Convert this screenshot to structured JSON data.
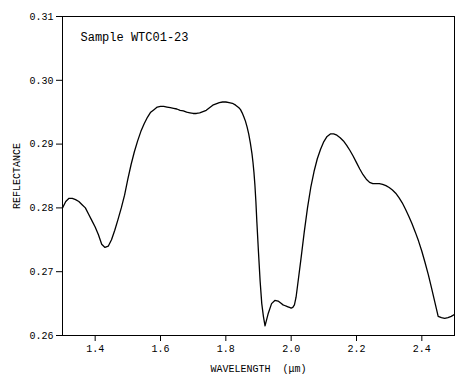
{
  "chart_data": {
    "type": "line",
    "title": "Sample WTC01-23",
    "xlabel": "WAVELENGTH  (μm)",
    "ylabel": "REFLECTANCE",
    "color": "#000000",
    "xlim": [
      1.3,
      2.5
    ],
    "ylim": [
      0.26,
      0.31
    ],
    "xticks": [
      1.4,
      1.6,
      1.8,
      {
        "value": 2.0,
        "label": "2.0"
      },
      2.2,
      2.4
    ],
    "yticks": [
      0.26,
      0.27,
      0.28,
      0.29,
      {
        "value": 0.3,
        "label": "0.30"
      },
      0.31
    ],
    "x": [
      1.3,
      1.31,
      1.32,
      1.33,
      1.34,
      1.35,
      1.36,
      1.37,
      1.38,
      1.39,
      1.4,
      1.41,
      1.42,
      1.43,
      1.44,
      1.45,
      1.46,
      1.47,
      1.48,
      1.49,
      1.5,
      1.51,
      1.52,
      1.53,
      1.54,
      1.55,
      1.56,
      1.57,
      1.58,
      1.59,
      1.6,
      1.61,
      1.62,
      1.63,
      1.64,
      1.65,
      1.66,
      1.67,
      1.68,
      1.69,
      1.7,
      1.71,
      1.72,
      1.73,
      1.74,
      1.75,
      1.76,
      1.77,
      1.78,
      1.79,
      1.8,
      1.81,
      1.82,
      1.83,
      1.84,
      1.845,
      1.85,
      1.855,
      1.86,
      1.865,
      1.87,
      1.875,
      1.88,
      1.883,
      1.886,
      1.889,
      1.892,
      1.895,
      1.9,
      1.905,
      1.91,
      1.915,
      1.92,
      1.93,
      1.94,
      1.95,
      1.96,
      1.965,
      1.97,
      1.975,
      1.98,
      1.985,
      1.99,
      1.995,
      2.0,
      2.005,
      2.01,
      2.015,
      2.02,
      2.03,
      2.04,
      2.05,
      2.06,
      2.07,
      2.08,
      2.09,
      2.1,
      2.11,
      2.12,
      2.13,
      2.14,
      2.15,
      2.16,
      2.17,
      2.18,
      2.19,
      2.2,
      2.21,
      2.22,
      2.23,
      2.24,
      2.25,
      2.26,
      2.27,
      2.28,
      2.29,
      2.3,
      2.31,
      2.32,
      2.33,
      2.34,
      2.35,
      2.36,
      2.37,
      2.38,
      2.39,
      2.4,
      2.41,
      2.42,
      2.43,
      2.44,
      2.45,
      2.46,
      2.47,
      2.48,
      2.49,
      2.5
    ],
    "values": [
      0.28,
      0.281,
      0.2815,
      0.2815,
      0.2813,
      0.281,
      0.2805,
      0.28,
      0.279,
      0.278,
      0.277,
      0.2758,
      0.2743,
      0.2738,
      0.274,
      0.275,
      0.2765,
      0.2782,
      0.28,
      0.282,
      0.2845,
      0.2868,
      0.2888,
      0.2905,
      0.292,
      0.2932,
      0.2942,
      0.295,
      0.2954,
      0.2958,
      0.2959,
      0.2959,
      0.2958,
      0.2957,
      0.2956,
      0.2955,
      0.2953,
      0.2952,
      0.295,
      0.2949,
      0.2948,
      0.2948,
      0.2949,
      0.2951,
      0.2953,
      0.2957,
      0.2961,
      0.2963,
      0.2965,
      0.2966,
      0.2966,
      0.2965,
      0.2964,
      0.2961,
      0.2957,
      0.2954,
      0.2949,
      0.2943,
      0.2936,
      0.2927,
      0.2916,
      0.2902,
      0.2885,
      0.2872,
      0.2856,
      0.2836,
      0.281,
      0.2778,
      0.273,
      0.2685,
      0.265,
      0.263,
      0.2615,
      0.2635,
      0.265,
      0.2655,
      0.2654,
      0.2652,
      0.265,
      0.2648,
      0.2647,
      0.2646,
      0.2645,
      0.2644,
      0.2643,
      0.2644,
      0.2648,
      0.266,
      0.268,
      0.272,
      0.2762,
      0.28,
      0.2832,
      0.2857,
      0.2877,
      0.2892,
      0.2904,
      0.2912,
      0.2916,
      0.2916,
      0.2914,
      0.291,
      0.2905,
      0.2898,
      0.289,
      0.2881,
      0.2871,
      0.2861,
      0.2852,
      0.2845,
      0.284,
      0.2838,
      0.2838,
      0.2838,
      0.2837,
      0.2835,
      0.2832,
      0.2828,
      0.2823,
      0.2816,
      0.2808,
      0.2798,
      0.2787,
      0.2775,
      0.2762,
      0.2748,
      0.2732,
      0.2714,
      0.2695,
      0.2674,
      0.2652,
      0.263,
      0.2628,
      0.2627,
      0.2628,
      0.263,
      0.2633
    ]
  }
}
